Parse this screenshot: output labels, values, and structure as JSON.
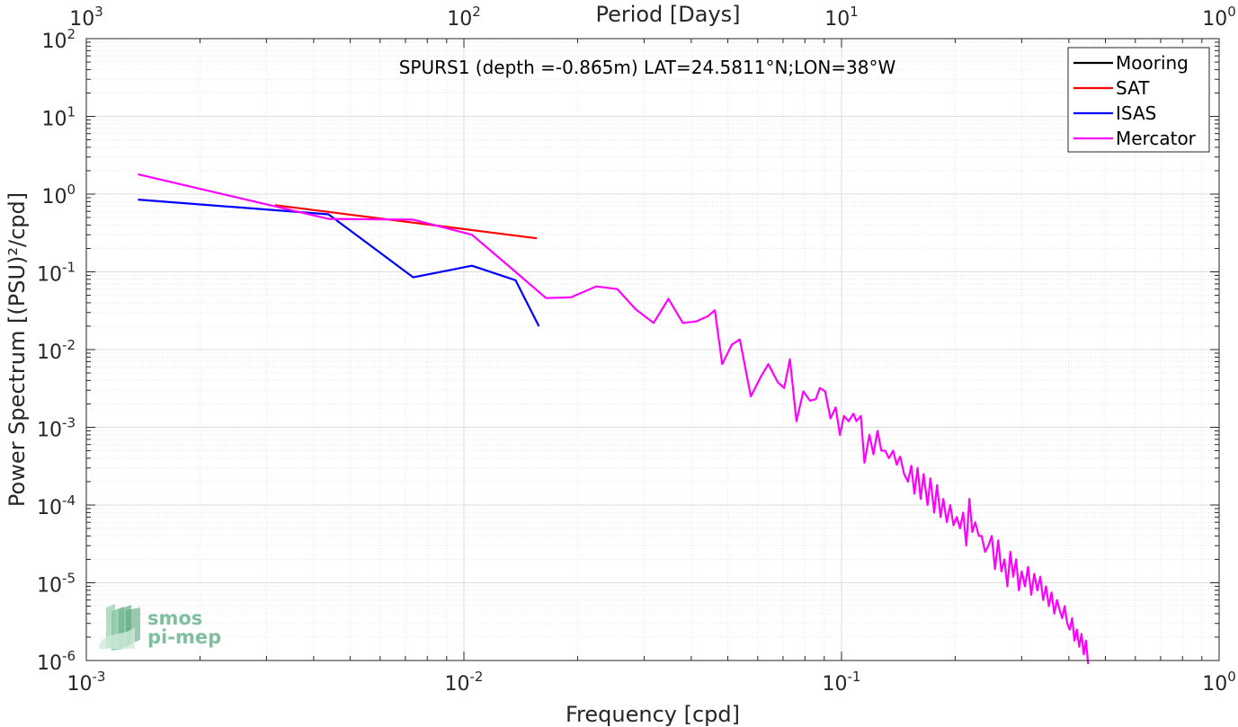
{
  "chart_data": {
    "type": "line",
    "title": "SPURS1 (depth =-0.865m) LAT=24.5811°N;LON=38°W",
    "xlabel": "Frequency [cpd]",
    "ylabel": "Power Spectrum [(PSU)²/cpd]",
    "top_xlabel": "Period [Days]",
    "xscale": "log",
    "yscale": "log",
    "xlim": [
      0.001,
      1
    ],
    "ylim": [
      1e-06,
      100
    ],
    "grid": true,
    "legend_position": "top-right",
    "x_ticks": [
      {
        "base": "10",
        "exp": "-3"
      },
      {
        "base": "10",
        "exp": "-2"
      },
      {
        "base": "10",
        "exp": "-1"
      },
      {
        "base": "10",
        "exp": "0"
      }
    ],
    "y_ticks": [
      {
        "base": "10",
        "exp": "-6"
      },
      {
        "base": "10",
        "exp": "-5"
      },
      {
        "base": "10",
        "exp": "-4"
      },
      {
        "base": "10",
        "exp": "-3"
      },
      {
        "base": "10",
        "exp": "-2"
      },
      {
        "base": "10",
        "exp": "-1"
      },
      {
        "base": "10",
        "exp": "0"
      },
      {
        "base": "10",
        "exp": "1"
      },
      {
        "base": "10",
        "exp": "2"
      }
    ],
    "top_ticks": [
      {
        "base": "10",
        "exp": "3"
      },
      {
        "base": "10",
        "exp": "2"
      },
      {
        "base": "10",
        "exp": "1"
      },
      {
        "base": "10",
        "exp": "0"
      }
    ],
    "series": [
      {
        "name": "Mooring",
        "color": "#000000",
        "points": []
      },
      {
        "name": "SAT",
        "color": "#ff0000",
        "points": [
          [
            0.00316,
            0.72
          ],
          [
            0.0156,
            0.27
          ]
        ]
      },
      {
        "name": "ISAS",
        "color": "#0000ff",
        "points": [
          [
            0.00137,
            0.85
          ],
          [
            0.00438,
            0.55
          ],
          [
            0.00734,
            0.085
          ],
          [
            0.0105,
            0.12
          ],
          [
            0.0137,
            0.078
          ],
          [
            0.0158,
            0.02
          ]
        ]
      },
      {
        "name": "Mercator",
        "color": "#ff00ff",
        "points": [
          [
            0.00137,
            1.8
          ],
          [
            0.00438,
            0.48
          ],
          [
            0.00734,
            0.47
          ],
          [
            0.0105,
            0.3
          ],
          [
            0.0137,
            0.1
          ],
          [
            0.0165,
            0.046
          ],
          [
            0.0192,
            0.047
          ],
          [
            0.0224,
            0.065
          ],
          [
            0.0255,
            0.06
          ],
          [
            0.0285,
            0.033
          ],
          [
            0.0318,
            0.022
          ],
          [
            0.0348,
            0.045
          ],
          [
            0.038,
            0.022
          ],
          [
            0.0412,
            0.023
          ],
          [
            0.0443,
            0.027
          ],
          [
            0.0462,
            0.032
          ],
          [
            0.0483,
            0.0065
          ],
          [
            0.0512,
            0.0115
          ],
          [
            0.0538,
            0.0135
          ],
          [
            0.0575,
            0.0025
          ],
          [
            0.0612,
            0.0045
          ],
          [
            0.064,
            0.0065
          ],
          [
            0.0678,
            0.0038
          ],
          [
            0.0705,
            0.0032
          ],
          [
            0.073,
            0.0075
          ],
          [
            0.076,
            0.0012
          ],
          [
            0.0792,
            0.0029
          ],
          [
            0.0825,
            0.0022
          ],
          [
            0.0855,
            0.0023
          ],
          [
            0.0876,
            0.0032
          ],
          [
            0.0905,
            0.0029
          ],
          [
            0.0935,
            0.0013
          ],
          [
            0.0965,
            0.0018
          ],
          [
            0.099,
            0.0008
          ],
          [
            0.1015,
            0.0014
          ],
          [
            0.1045,
            0.0012
          ],
          [
            0.1075,
            0.0015
          ],
          [
            0.1095,
            0.0012
          ],
          [
            0.1125,
            0.0014
          ],
          [
            0.115,
            0.00035
          ],
          [
            0.1185,
            0.0008
          ],
          [
            0.1215,
            0.00045
          ],
          [
            0.1245,
            0.0009
          ],
          [
            0.1275,
            0.0005
          ],
          [
            0.1305,
            0.0005
          ],
          [
            0.1335,
            0.0004
          ],
          [
            0.137,
            0.0005
          ],
          [
            0.14,
            0.00033
          ],
          [
            0.143,
            0.00042
          ],
          [
            0.1465,
            0.00025
          ],
          [
            0.15,
            0.0002
          ],
          [
            0.153,
            0.00032
          ],
          [
            0.156,
            0.00014
          ],
          [
            0.159,
            0.0003
          ],
          [
            0.162,
            0.00012
          ],
          [
            0.165,
            0.00025
          ],
          [
            0.169,
            0.0001
          ],
          [
            0.172,
            0.00022
          ],
          [
            0.176,
            8e-05
          ],
          [
            0.179,
            0.00018
          ],
          [
            0.183,
            7e-05
          ],
          [
            0.186,
            0.00012
          ],
          [
            0.19,
            6e-05
          ],
          [
            0.194,
            0.0001
          ],
          [
            0.198,
            5.5e-05
          ],
          [
            0.202,
            7e-05
          ],
          [
            0.206,
            5e-05
          ],
          [
            0.21,
            8e-05
          ],
          [
            0.214,
            3e-05
          ],
          [
            0.218,
            0.00012
          ],
          [
            0.222,
            4.5e-05
          ],
          [
            0.226,
            6e-05
          ],
          [
            0.231,
            4e-05
          ],
          [
            0.235,
            4e-05
          ],
          [
            0.24,
            2.5e-05
          ],
          [
            0.245,
            3e-05
          ],
          [
            0.25,
            4e-05
          ],
          [
            0.255,
            1.5e-05
          ],
          [
            0.26,
            3.5e-05
          ],
          [
            0.265,
            1.4e-05
          ],
          [
            0.27,
            2e-05
          ],
          [
            0.275,
            9e-06
          ],
          [
            0.28,
            2.5e-05
          ],
          [
            0.285,
            1.2e-05
          ],
          [
            0.29,
            2e-05
          ],
          [
            0.295,
            8e-06
          ],
          [
            0.3,
            1.4e-05
          ],
          [
            0.306,
            9e-06
          ],
          [
            0.312,
            1.6e-05
          ],
          [
            0.318,
            7e-06
          ],
          [
            0.324,
            1.3e-05
          ],
          [
            0.33,
            8e-06
          ],
          [
            0.336,
            1.2e-05
          ],
          [
            0.342,
            6e-06
          ],
          [
            0.348,
            9e-06
          ],
          [
            0.354,
            5e-06
          ],
          [
            0.36,
            7.5e-06
          ],
          [
            0.366,
            4e-06
          ],
          [
            0.372,
            6e-06
          ],
          [
            0.378,
            4.5e-06
          ],
          [
            0.384,
            3.5e-06
          ],
          [
            0.39,
            5e-06
          ],
          [
            0.396,
            3e-06
          ],
          [
            0.402,
            2.5e-06
          ],
          [
            0.408,
            3.5e-06
          ],
          [
            0.414,
            1.8e-06
          ],
          [
            0.42,
            2.5e-06
          ],
          [
            0.426,
            1.5e-06
          ],
          [
            0.432,
            2.2e-06
          ],
          [
            0.438,
            1.2e-06
          ],
          [
            0.444,
            1.8e-06
          ],
          [
            0.45,
            9e-07
          ]
        ]
      }
    ]
  },
  "watermark": {
    "line1": "smos",
    "line2": "pi-mep",
    "color": "#7fbf9f"
  }
}
